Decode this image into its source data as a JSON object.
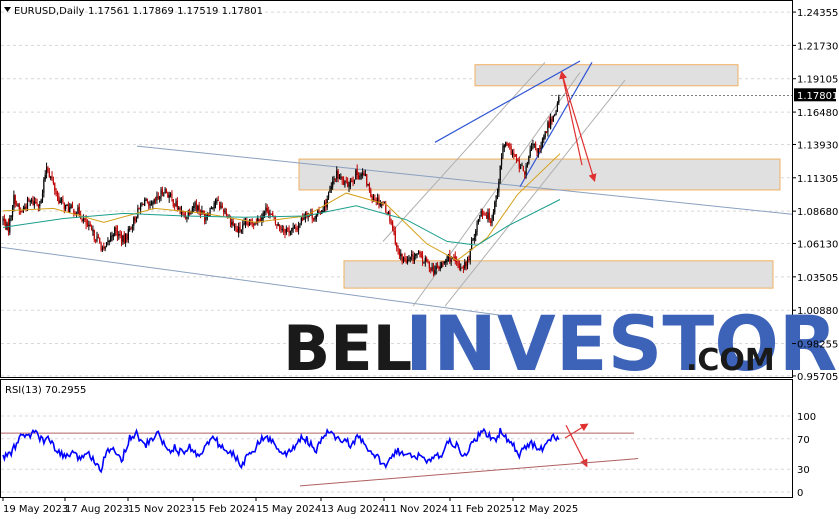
{
  "header": {
    "symbol": "EURUSD,Daily",
    "ohlc": "1.17561 1.17869 1.17519 1.17801"
  },
  "rsi_header": "RSI(13) 70.2955",
  "watermark": {
    "part1": "BEL",
    "part2": "INVESTOR",
    "part3": ".COM"
  },
  "colors": {
    "bull": "#000000",
    "bear": "#c00000",
    "ma_fast": "#d4a017",
    "ma_slow": "#1a9e8c",
    "channel": "#8aa0c0",
    "trend_blue": "#2f55d4",
    "zone_fill": "#e0e0e0",
    "zone_border": "#f0b060",
    "arrow": "#e03030",
    "rsi_line": "#0000ff",
    "rsi_band": "#b06060",
    "grid": "#d8d8d8"
  },
  "chart_data": [
    {
      "type": "candlestick",
      "title": "EURUSD,Daily",
      "ylim": [
        0.957,
        1.2436
      ],
      "y_ticks": [
        "1.24355",
        "1.21730",
        "1.19105",
        "1.16480",
        "1.13930",
        "1.11305",
        "1.08680",
        "1.06130",
        "1.03505",
        "1.00880",
        "0.98255",
        "0.95705"
      ],
      "y_tick_values": [
        1.24355,
        1.2173,
        1.19105,
        1.1648,
        1.1393,
        1.11305,
        1.0868,
        1.0613,
        1.03505,
        1.0088,
        0.98255,
        0.95705
      ],
      "current_price_label": "1.17801",
      "current_price": 1.17801,
      "x_ticks": [
        "19 May 2023",
        "17 Aug 2023",
        "15 Nov 2023",
        "15 Feb 2024",
        "15 May 2024",
        "13 Aug 2024",
        "11 Nov 2024",
        "11 Feb 2025",
        "12 May 2025"
      ],
      "close_path": [
        [
          0,
          1.08
        ],
        [
          5,
          1.072
        ],
        [
          11,
          1.098
        ],
        [
          17,
          1.085
        ],
        [
          25,
          1.094
        ],
        [
          38,
          1.094
        ],
        [
          43,
          1.123
        ],
        [
          55,
          1.096
        ],
        [
          62,
          1.09
        ],
        [
          75,
          1.086
        ],
        [
          85,
          1.073
        ],
        [
          95,
          1.063
        ],
        [
          100,
          1.055
        ],
        [
          110,
          1.072
        ],
        [
          120,
          1.063
        ],
        [
          125,
          1.072
        ],
        [
          140,
          1.096
        ],
        [
          145,
          1.088
        ],
        [
          160,
          1.104
        ],
        [
          170,
          1.093
        ],
        [
          180,
          1.082
        ],
        [
          190,
          1.093
        ],
        [
          200,
          1.082
        ],
        [
          210,
          1.095
        ],
        [
          220,
          1.087
        ],
        [
          232,
          1.071
        ],
        [
          240,
          1.075
        ],
        [
          255,
          1.082
        ],
        [
          262,
          1.089
        ],
        [
          270,
          1.077
        ],
        [
          280,
          1.072
        ],
        [
          290,
          1.072
        ],
        [
          300,
          1.086
        ],
        [
          310,
          1.082
        ],
        [
          320,
          1.093
        ],
        [
          330,
          1.116
        ],
        [
          340,
          1.107
        ],
        [
          350,
          1.116
        ],
        [
          358,
          1.115
        ],
        [
          365,
          1.099
        ],
        [
          378,
          1.092
        ],
        [
          385,
          1.078
        ],
        [
          392,
          1.053
        ],
        [
          400,
          1.046
        ],
        [
          410,
          1.053
        ],
        [
          420,
          1.046
        ],
        [
          428,
          1.04
        ],
        [
          436,
          1.045
        ],
        [
          442,
          1.051
        ],
        [
          452,
          1.043
        ],
        [
          460,
          1.045
        ],
        [
          466,
          1.066
        ],
        [
          474,
          1.088
        ],
        [
          484,
          1.08
        ],
        [
          490,
          1.104
        ],
        [
          496,
          1.14
        ],
        [
          504,
          1.134
        ],
        [
          512,
          1.121
        ],
        [
          518,
          1.118
        ],
        [
          524,
          1.138
        ],
        [
          532,
          1.134
        ],
        [
          540,
          1.154
        ],
        [
          546,
          1.163
        ],
        [
          552,
          1.178
        ]
      ],
      "ma_fast_path": [
        [
          0,
          1.087
        ],
        [
          50,
          1.089
        ],
        [
          100,
          1.078
        ],
        [
          150,
          1.089
        ],
        [
          200,
          1.085
        ],
        [
          250,
          1.078
        ],
        [
          300,
          1.083
        ],
        [
          340,
          1.101
        ],
        [
          380,
          1.092
        ],
        [
          420,
          1.061
        ],
        [
          450,
          1.048
        ],
        [
          480,
          1.066
        ],
        [
          510,
          1.1
        ],
        [
          552,
          1.132
        ]
      ],
      "ma_slow_path": [
        [
          0,
          1.074
        ],
        [
          60,
          1.081
        ],
        [
          120,
          1.085
        ],
        [
          180,
          1.083
        ],
        [
          240,
          1.082
        ],
        [
          300,
          1.083
        ],
        [
          350,
          1.091
        ],
        [
          400,
          1.08
        ],
        [
          440,
          1.063
        ],
        [
          470,
          1.06
        ],
        [
          500,
          1.075
        ],
        [
          552,
          1.096
        ]
      ]
    },
    {
      "type": "line",
      "title": "RSI(13) 70.2955",
      "ylim": [
        0,
        100
      ],
      "y_ticks": [
        "100",
        "70",
        "30",
        "0"
      ],
      "y_tick_values": [
        100,
        70,
        30,
        0
      ],
      "levels": [
        70,
        30
      ],
      "rsi_path": [
        [
          0,
          45
        ],
        [
          8,
          52
        ],
        [
          15,
          66
        ],
        [
          20,
          78
        ],
        [
          25,
          70
        ],
        [
          32,
          82
        ],
        [
          38,
          68
        ],
        [
          45,
          70
        ],
        [
          52,
          55
        ],
        [
          60,
          47
        ],
        [
          68,
          50
        ],
        [
          75,
          44
        ],
        [
          82,
          52
        ],
        [
          90,
          44
        ],
        [
          97,
          30
        ],
        [
          103,
          58
        ],
        [
          110,
          53
        ],
        [
          118,
          44
        ],
        [
          125,
          70
        ],
        [
          132,
          78
        ],
        [
          140,
          60
        ],
        [
          148,
          70
        ],
        [
          155,
          78
        ],
        [
          162,
          54
        ],
        [
          170,
          58
        ],
        [
          178,
          50
        ],
        [
          185,
          60
        ],
        [
          192,
          48
        ],
        [
          200,
          58
        ],
        [
          208,
          72
        ],
        [
          215,
          62
        ],
        [
          222,
          52
        ],
        [
          230,
          48
        ],
        [
          237,
          32
        ],
        [
          242,
          52
        ],
        [
          250,
          58
        ],
        [
          258,
          72
        ],
        [
          265,
          68
        ],
        [
          272,
          60
        ],
        [
          280,
          48
        ],
        [
          288,
          58
        ],
        [
          295,
          72
        ],
        [
          302,
          68
        ],
        [
          310,
          52
        ],
        [
          318,
          74
        ],
        [
          322,
          80
        ],
        [
          330,
          70
        ],
        [
          338,
          68
        ],
        [
          345,
          62
        ],
        [
          352,
          72
        ],
        [
          358,
          62
        ],
        [
          365,
          50
        ],
        [
          372,
          44
        ],
        [
          378,
          34
        ],
        [
          385,
          50
        ],
        [
          392,
          54
        ],
        [
          400,
          48
        ],
        [
          407,
          45
        ],
        [
          414,
          50
        ],
        [
          420,
          40
        ],
        [
          428,
          44
        ],
        [
          436,
          52
        ],
        [
          442,
          66
        ],
        [
          450,
          60
        ],
        [
          456,
          44
        ],
        [
          463,
          60
        ],
        [
          470,
          72
        ],
        [
          476,
          79
        ],
        [
          482,
          74
        ],
        [
          488,
          68
        ],
        [
          494,
          82
        ],
        [
          500,
          68
        ],
        [
          506,
          60
        ],
        [
          512,
          48
        ],
        [
          518,
          60
        ],
        [
          524,
          64
        ],
        [
          532,
          54
        ],
        [
          540,
          66
        ],
        [
          546,
          72
        ],
        [
          552,
          70
        ]
      ]
    }
  ]
}
